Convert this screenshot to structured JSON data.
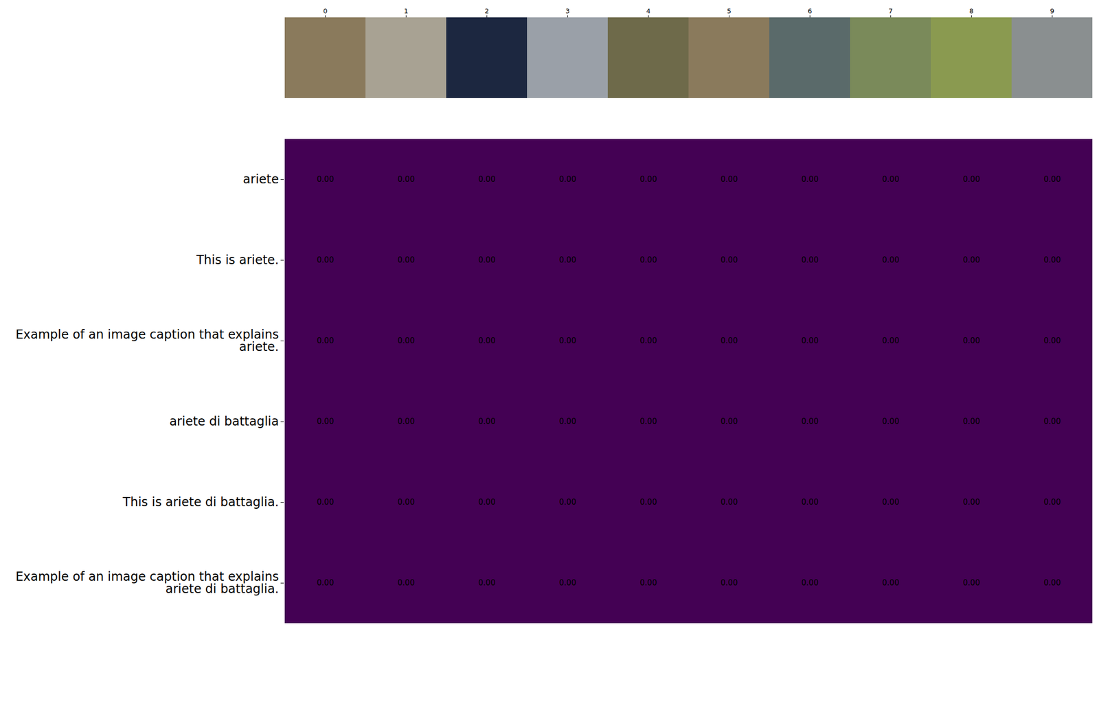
{
  "chart_data": {
    "type": "heatmap",
    "x": [
      0,
      1,
      2,
      3,
      4,
      5,
      6,
      7,
      8,
      9
    ],
    "y": [
      "ariete",
      "This is ariete.",
      "Example of an image caption that explains\nariete.",
      "ariete di battaglia",
      "This is ariete di battaglia.",
      "Example of an image caption that explains\nariete di battaglia."
    ],
    "values": [
      [
        0,
        0,
        0,
        0,
        0,
        0,
        0,
        0,
        0,
        0
      ],
      [
        0,
        0,
        0,
        0,
        0,
        0,
        0,
        0,
        0,
        0
      ],
      [
        0,
        0,
        0,
        0,
        0,
        0,
        0,
        0,
        0,
        0
      ],
      [
        0,
        0,
        0,
        0,
        0,
        0,
        0,
        0,
        0,
        0
      ],
      [
        0,
        0,
        0,
        0,
        0,
        0,
        0,
        0,
        0,
        0
      ],
      [
        0,
        0,
        0,
        0,
        0,
        0,
        0,
        0,
        0,
        0
      ]
    ],
    "value_labels": [
      [
        "0.00",
        "0.00",
        "0.00",
        "0.00",
        "0.00",
        "0.00",
        "0.00",
        "0.00",
        "0.00",
        "0.00"
      ],
      [
        "0.00",
        "0.00",
        "0.00",
        "0.00",
        "0.00",
        "0.00",
        "0.00",
        "0.00",
        "0.00",
        "0.00"
      ],
      [
        "0.00",
        "0.00",
        "0.00",
        "0.00",
        "0.00",
        "0.00",
        "0.00",
        "0.00",
        "0.00",
        "0.00"
      ],
      [
        "0.00",
        "0.00",
        "0.00",
        "0.00",
        "0.00",
        "0.00",
        "0.00",
        "0.00",
        "0.00",
        "0.00"
      ],
      [
        "0.00",
        "0.00",
        "0.00",
        "0.00",
        "0.00",
        "0.00",
        "0.00",
        "0.00",
        "0.00",
        "0.00"
      ],
      [
        "0.00",
        "0.00",
        "0.00",
        "0.00",
        "0.00",
        "0.00",
        "0.00",
        "0.00",
        "0.00",
        "0.00"
      ]
    ],
    "color": "#440154",
    "data_labels": true
  }
}
